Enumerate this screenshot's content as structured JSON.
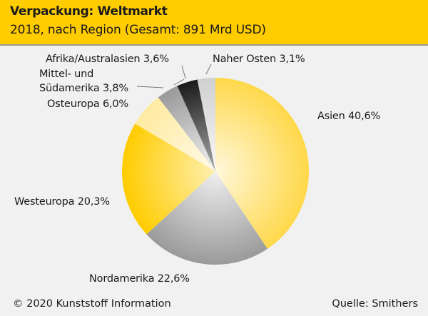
{
  "chart_data": {
    "type": "pie",
    "title": "Verpackung: Weltmarkt",
    "subtitle": "2018, nach Region (Gesamt: 891 Mrd USD)",
    "start": "top, clockwise",
    "slices": [
      {
        "name": "Asien",
        "value": 40.6,
        "label": "Asien 40,6%",
        "inner": "#fff8dc",
        "outer": "#ffd84a"
      },
      {
        "name": "Nordamerika",
        "value": 22.6,
        "label": "Nordamerika 22,6%",
        "inner": "#f0f0f0",
        "outer": "#9a9a9a"
      },
      {
        "name": "Westeuropa",
        "value": 20.3,
        "label": "Westeuropa 20,3%",
        "inner": "#fff0b0",
        "outer": "#ffcc00"
      },
      {
        "name": "Osteuropa",
        "value": 6.0,
        "label": "Osteuropa 6,0%",
        "inner": "#fffaea",
        "outer": "#ffeaa0"
      },
      {
        "name": "Mittel- und Südamerika",
        "value": 3.8,
        "label_line1": "Mittel- und",
        "label_line2": "Südamerika 3,8%",
        "inner": "#f2f2f2",
        "outer": "#999999"
      },
      {
        "name": "Afrika/Australasien",
        "value": 3.6,
        "label": "Afrika/Australasien 3,6%",
        "inner": "#aaaaaa",
        "outer": "#1a1a1a"
      },
      {
        "name": "Naher Osten",
        "value": 3.1,
        "label": "Naher Osten 3,1%",
        "inner": "#f8f8f8",
        "outer": "#d0d0d0"
      }
    ]
  },
  "footer": {
    "copyright": "© 2020 Kunststoff Information",
    "source": "Quelle: Smithers"
  }
}
